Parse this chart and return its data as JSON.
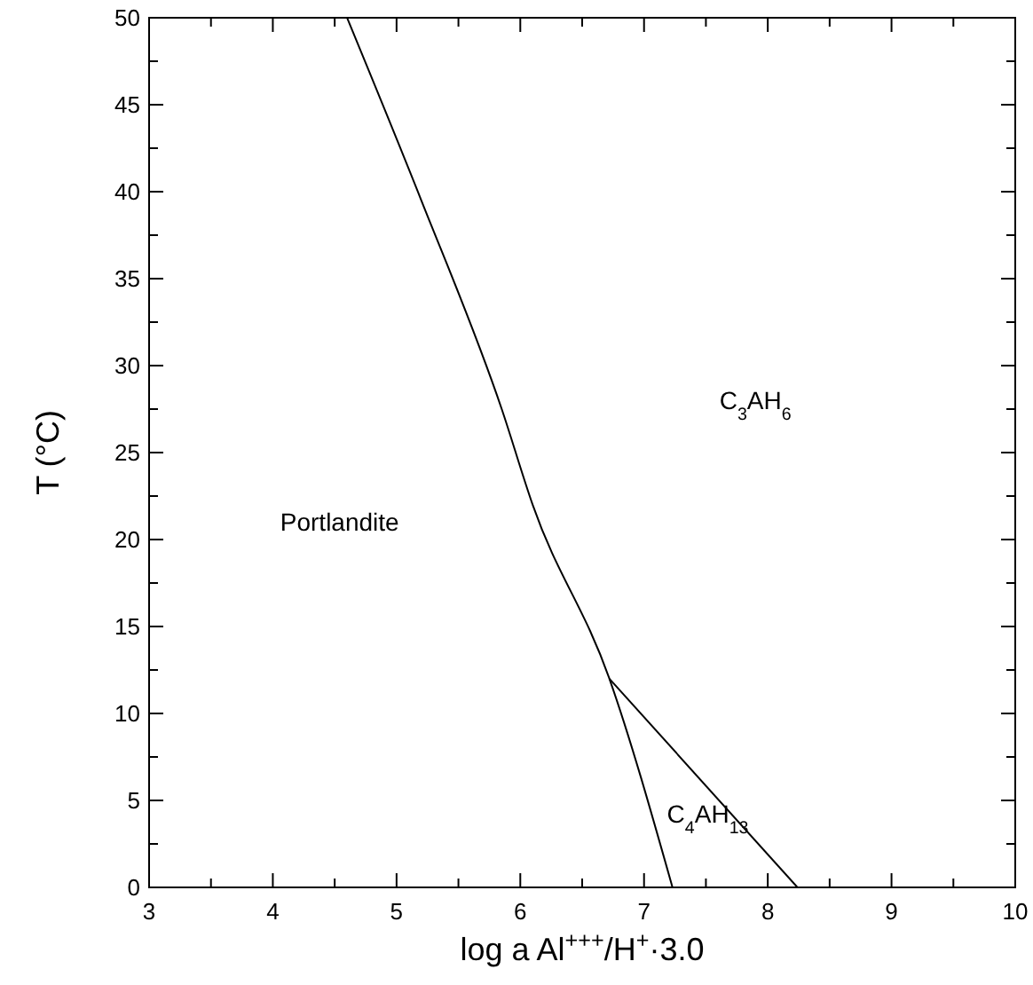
{
  "chart_data": {
    "type": "line",
    "xlabel": "log a Al$^{+++}$/H$^{+}$·3.0",
    "ylabel": "T (°C)",
    "xlim": [
      3,
      10
    ],
    "ylim": [
      0,
      50
    ],
    "xticks": [
      3,
      {
        "value": 3.5,
        "label": null
      },
      4,
      {
        "value": 4.5,
        "label": null
      },
      5,
      {
        "value": 5.5,
        "label": null
      },
      6,
      {
        "value": 6.5,
        "label": null
      },
      7,
      {
        "value": 7.5,
        "label": null
      },
      8,
      {
        "value": 8.5,
        "label": null
      },
      9,
      {
        "value": 9.5,
        "label": null
      },
      10
    ],
    "yticks": [
      0,
      {
        "value": 2.5,
        "label": null
      },
      5,
      {
        "value": 7.5,
        "label": null
      },
      10,
      {
        "value": 12.5,
        "label": null
      },
      15,
      {
        "value": 17.5,
        "label": null
      },
      20,
      {
        "value": 22.5,
        "label": null
      },
      25,
      {
        "value": 27.5,
        "label": null
      },
      30,
      {
        "value": 32.5,
        "label": null
      },
      35,
      {
        "value": 37.5,
        "label": null
      },
      40,
      {
        "value": 42.5,
        "label": null
      },
      45,
      {
        "value": 47.5,
        "label": null
      },
      50
    ],
    "grid": false,
    "marker": "none",
    "line_style": "solid",
    "series": [
      {
        "color": "#000000",
        "x": [
          4.6,
          5.2,
          5.85,
          6.1,
          6.72,
          7.23
        ],
        "values": [
          50,
          39.5,
          27.5,
          22,
          12,
          0
        ]
      },
      {
        "color": "#000000",
        "x": [
          6.72,
          8.24
        ],
        "values": [
          12,
          0
        ]
      }
    ],
    "annotations": [
      "Portlandite",
      "C$_{3}$AH$_{6}$",
      "C$_{4}$AH$_{13}$"
    ]
  }
}
